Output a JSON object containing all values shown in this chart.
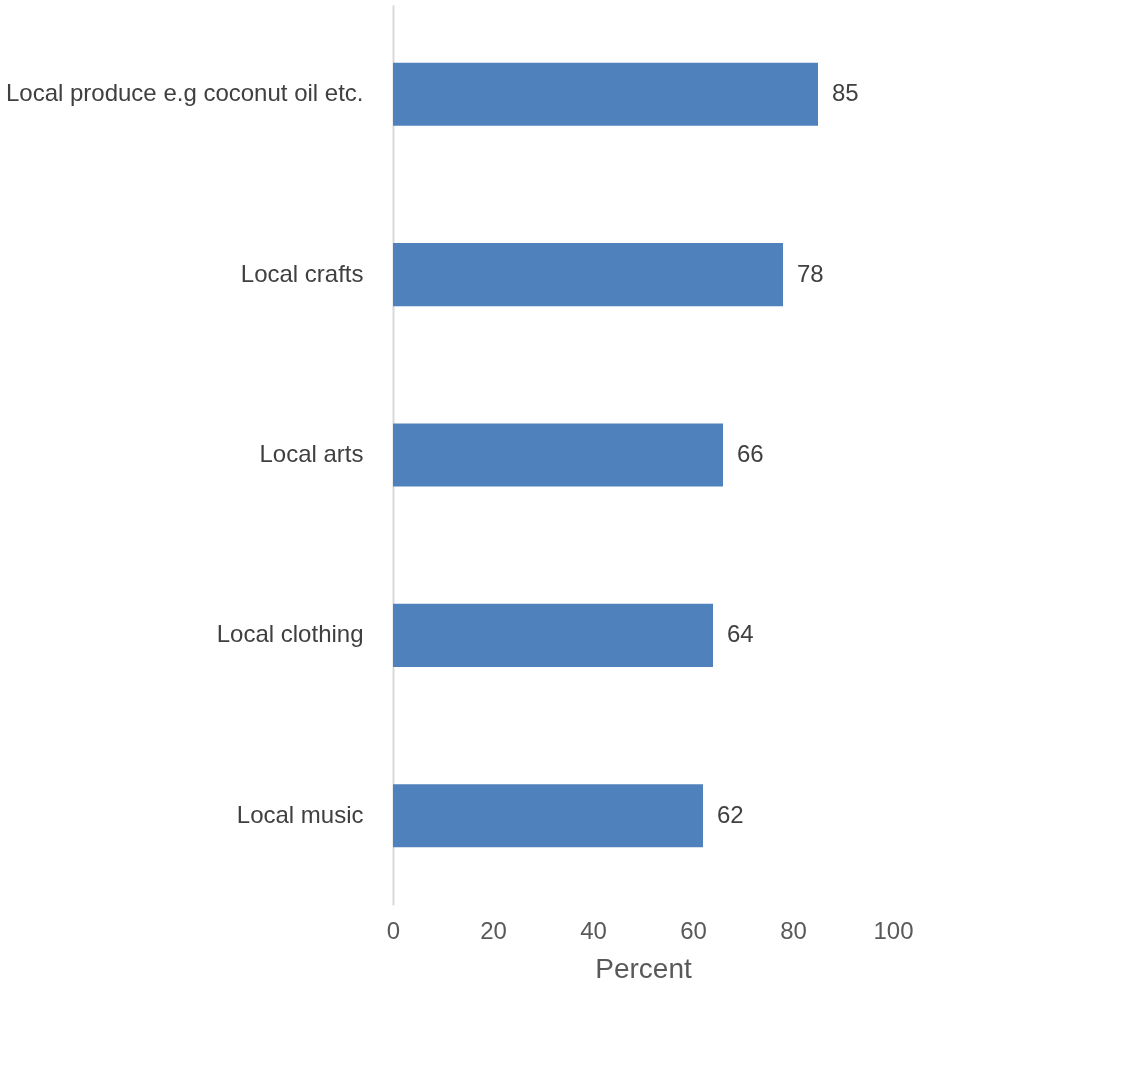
{
  "chart_data": {
    "type": "bar",
    "orientation": "horizontal",
    "xlabel": "Percent",
    "categories": [
      "Local produce e.g coconut oil etc.",
      "Local crafts",
      "Local arts",
      "Local clothing",
      "Local music"
    ],
    "values": [
      85,
      78,
      66,
      64,
      62
    ],
    "color": "#4f81bd",
    "xlim": [
      0,
      100
    ],
    "xticks": [
      0,
      20,
      40,
      60,
      80,
      100
    ],
    "grid": false,
    "data_labels": true
  }
}
